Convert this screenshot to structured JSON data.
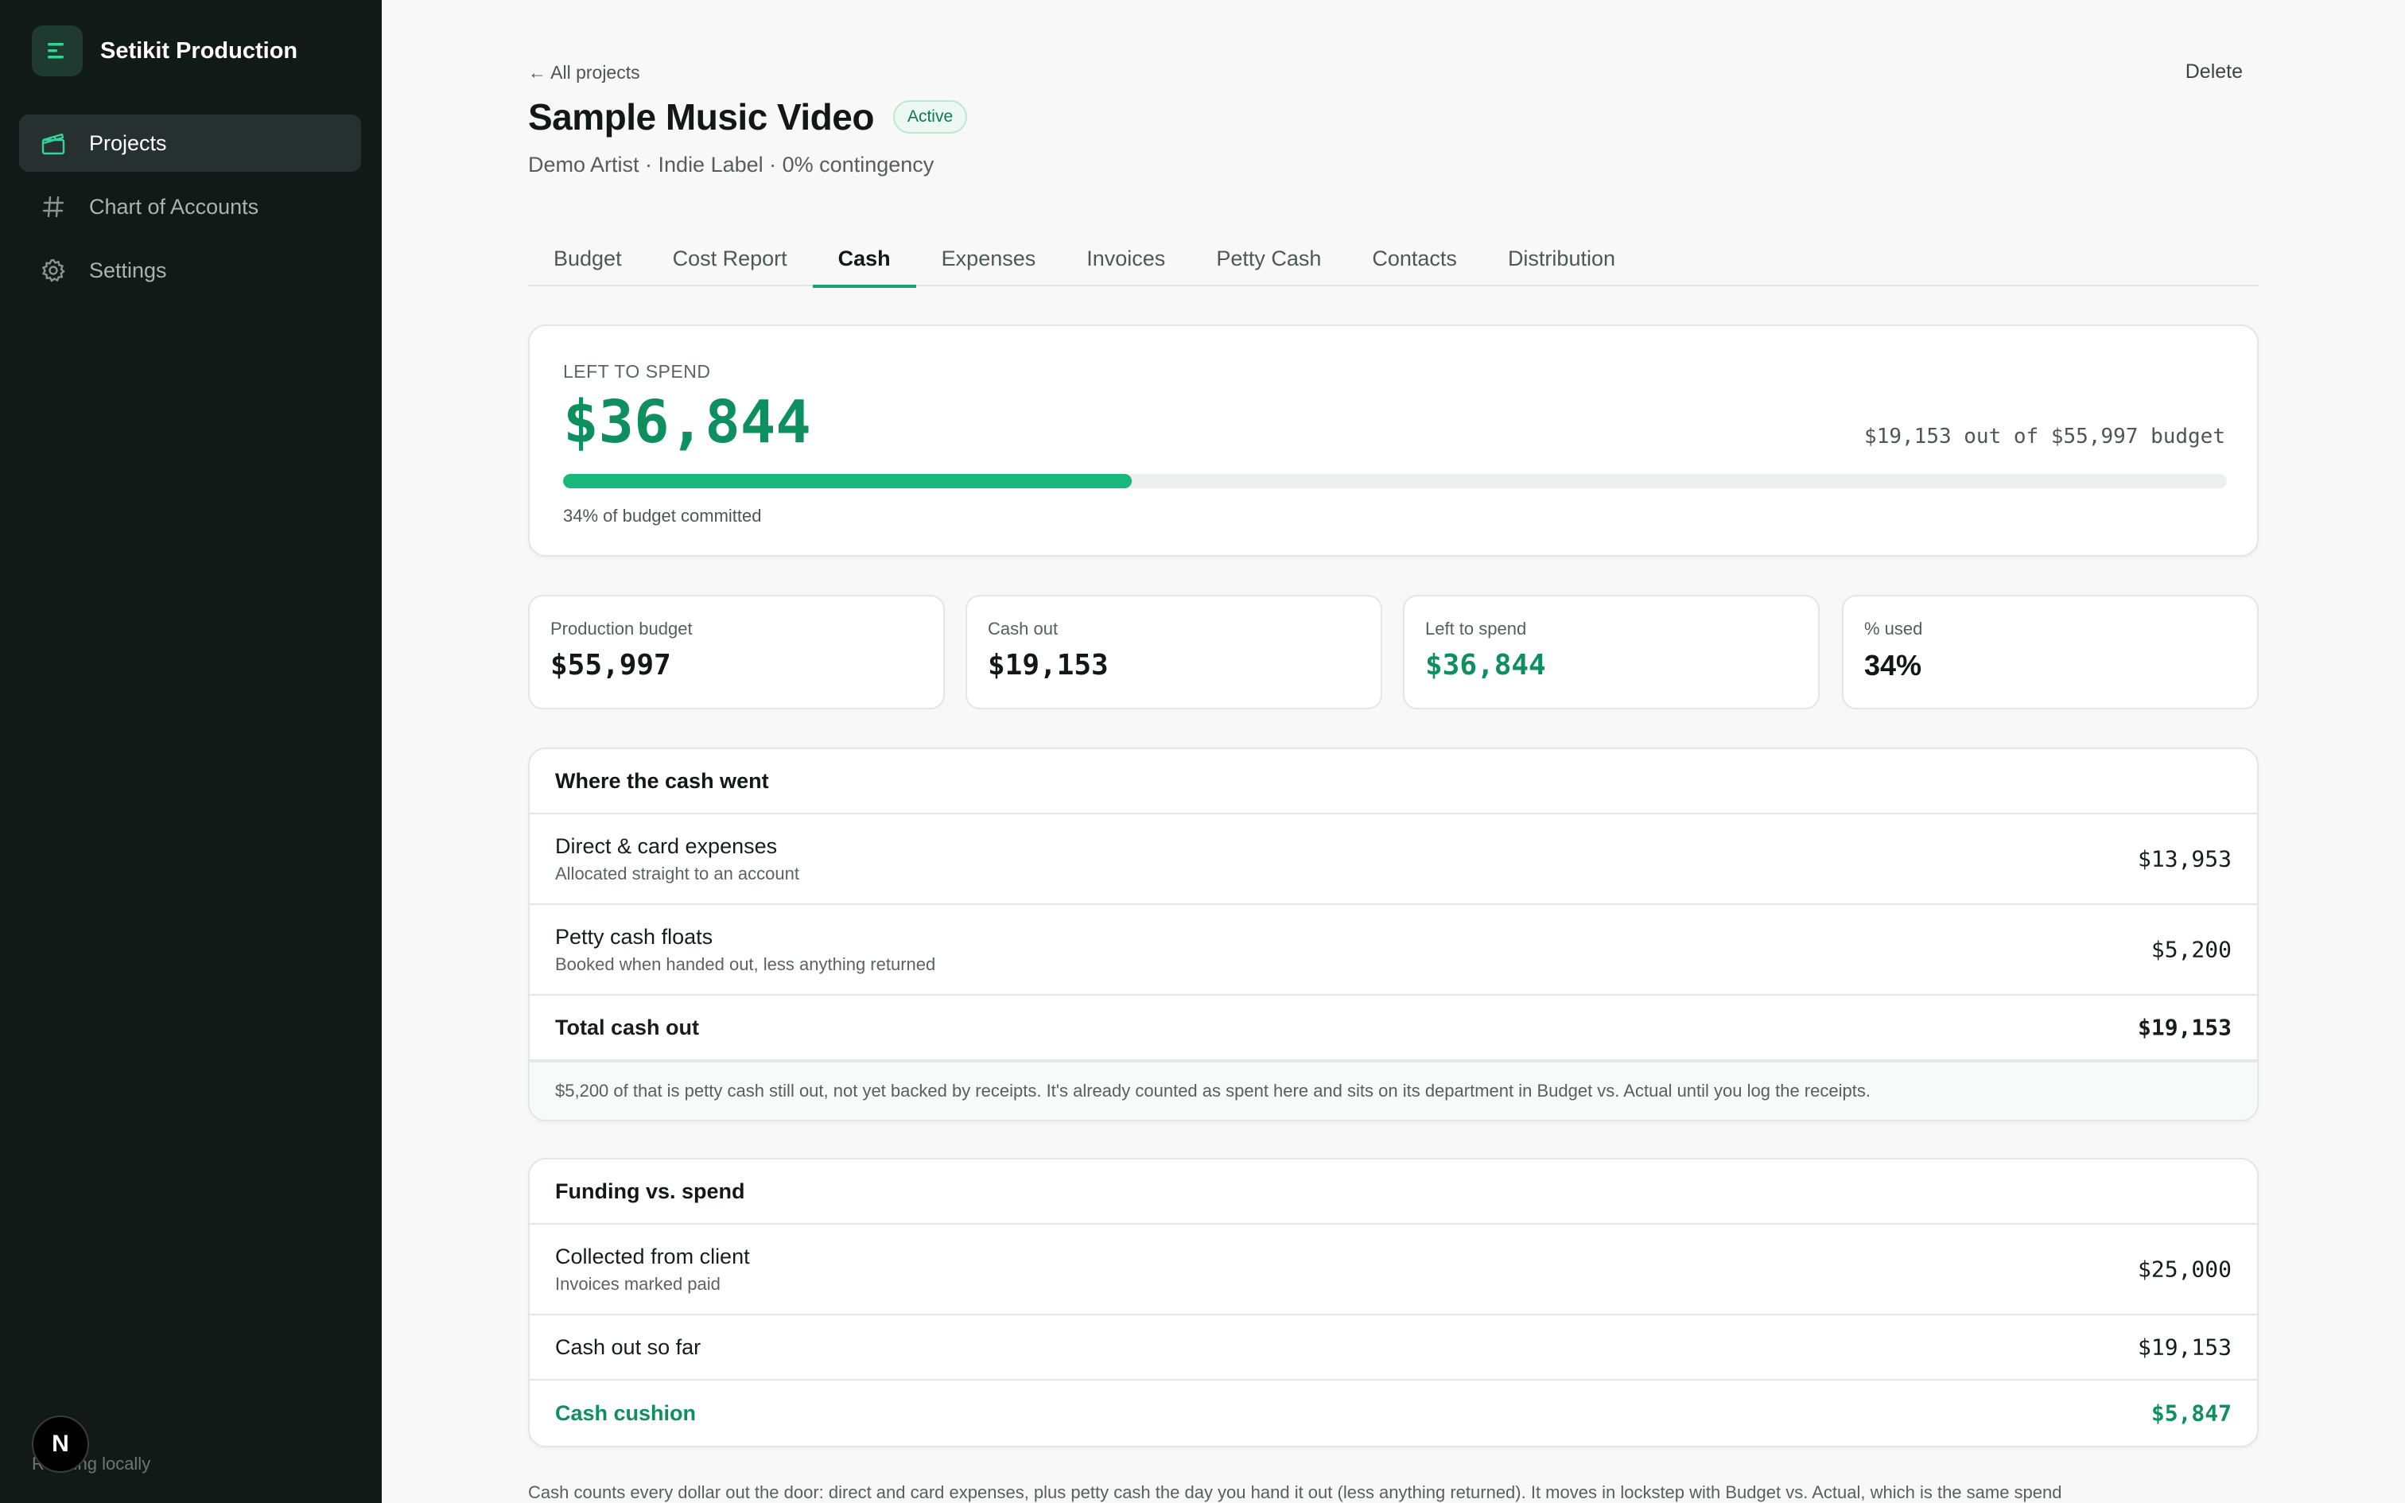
{
  "app": {
    "name": "Setikit Production",
    "footer_note": "Running locally",
    "badge_letter": "N"
  },
  "sidebar": {
    "items": [
      {
        "label": "Projects",
        "icon": "clapperboard-icon",
        "active": true
      },
      {
        "label": "Chart of Accounts",
        "icon": "hash-icon",
        "active": false
      },
      {
        "label": "Settings",
        "icon": "gear-icon",
        "active": false
      }
    ]
  },
  "header": {
    "back_label": "← All projects",
    "title": "Sample Music Video",
    "status": "Active",
    "subtitle": "Demo Artist · Indie Label · 0% contingency",
    "delete_label": "Delete"
  },
  "tabs": [
    "Budget",
    "Cost Report",
    "Cash",
    "Expenses",
    "Invoices",
    "Petty Cash",
    "Contacts",
    "Distribution"
  ],
  "active_tab": "Cash",
  "hero": {
    "label": "LEFT TO SPEND",
    "value": "$36,844",
    "summary": "$19,153 out of $55,997 budget",
    "progress_fraction": 0.342,
    "note": "34% of budget committed"
  },
  "stats": [
    {
      "label": "Production budget",
      "value": "$55,997",
      "accent": false
    },
    {
      "label": "Cash out",
      "value": "$19,153",
      "accent": false
    },
    {
      "label": "Left to spend",
      "value": "$36,844",
      "accent": true
    },
    {
      "label": "% used",
      "value": "34%",
      "accent": false
    }
  ],
  "cash_section": {
    "title": "Where the cash went",
    "rows": [
      {
        "title": "Direct & card expenses",
        "sub": "Allocated straight to an account",
        "amount": "$13,953"
      },
      {
        "title": "Petty cash floats",
        "sub": "Booked when handed out, less anything returned",
        "amount": "$5,200"
      },
      {
        "title": "Total cash out",
        "sub": "",
        "amount": "$19,153"
      }
    ],
    "note": "$5,200 of that is petty cash still out, not yet backed by receipts. It's already counted as spent here and sits on its department in Budget vs. Actual until you log the receipts."
  },
  "funding_section": {
    "title": "Funding vs. spend",
    "rows": [
      {
        "title": "Collected from client",
        "sub": "Invoices marked paid",
        "amount": "$25,000"
      },
      {
        "title": "Cash out so far",
        "sub": "",
        "amount": "$19,153"
      },
      {
        "title": "Cash cushion",
        "sub": "",
        "amount": "$5,847"
      }
    ]
  },
  "bottom_note": "Cash counts every dollar out the door: direct and card expenses, plus petty cash the day you hand it out (less anything returned). It moves in lockstep with Budget vs. Actual, which is the same spend",
  "colors": {
    "sidebar_bg": "#121a18",
    "accent_green": "#0e8f5f",
    "progress_green": "#18b77c",
    "page_bg": "#f7f8f7"
  }
}
